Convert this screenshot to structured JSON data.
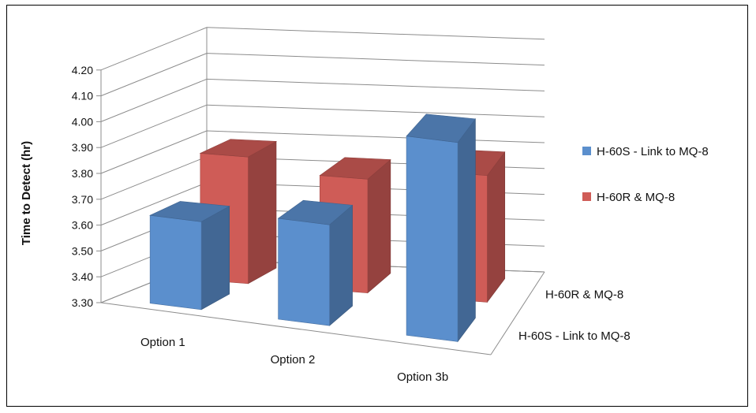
{
  "chart_data": {
    "type": "bar",
    "subtype": "3d-clustered-depth",
    "categories": [
      "Option 1",
      "Option 2",
      "Option 3b"
    ],
    "series": [
      {
        "name": "H-60S - Link to MQ-8",
        "values": [
          3.64,
          3.69,
          4.07
        ],
        "color": "#5b8fcd"
      },
      {
        "name": "H-60R &  MQ-8",
        "values": [
          3.79,
          3.74,
          3.79
        ],
        "color": "#cf5c57"
      }
    ],
    "depth_labels": [
      "H-60S - Link to MQ-8",
      "H-60R &  MQ-8"
    ],
    "ylabel": "Time to Detect (hr)",
    "ylim": [
      3.3,
      4.2
    ],
    "yticks": [
      "3.30",
      "3.40",
      "3.50",
      "3.60",
      "3.70",
      "3.80",
      "3.90",
      "4.00",
      "4.10",
      "4.20"
    ],
    "grid": true,
    "legend_position": "right"
  }
}
